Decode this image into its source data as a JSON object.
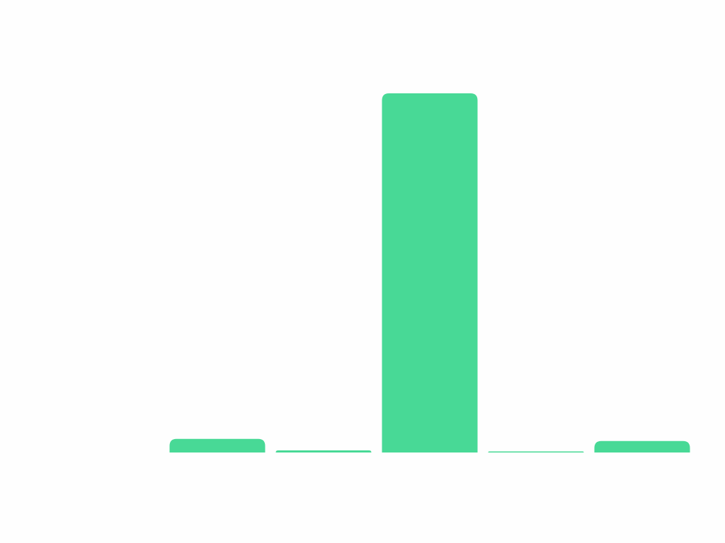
{
  "chart_data": {
    "type": "bar",
    "categories": [
      "",
      "",
      "",
      "",
      ""
    ],
    "values": [
      3.8,
      0.6,
      100,
      0.3,
      3.2
    ],
    "ylim": [
      0,
      100
    ],
    "grid": false,
    "legend": "none",
    "bar_color": "#48d996",
    "background": "#fefefe"
  }
}
